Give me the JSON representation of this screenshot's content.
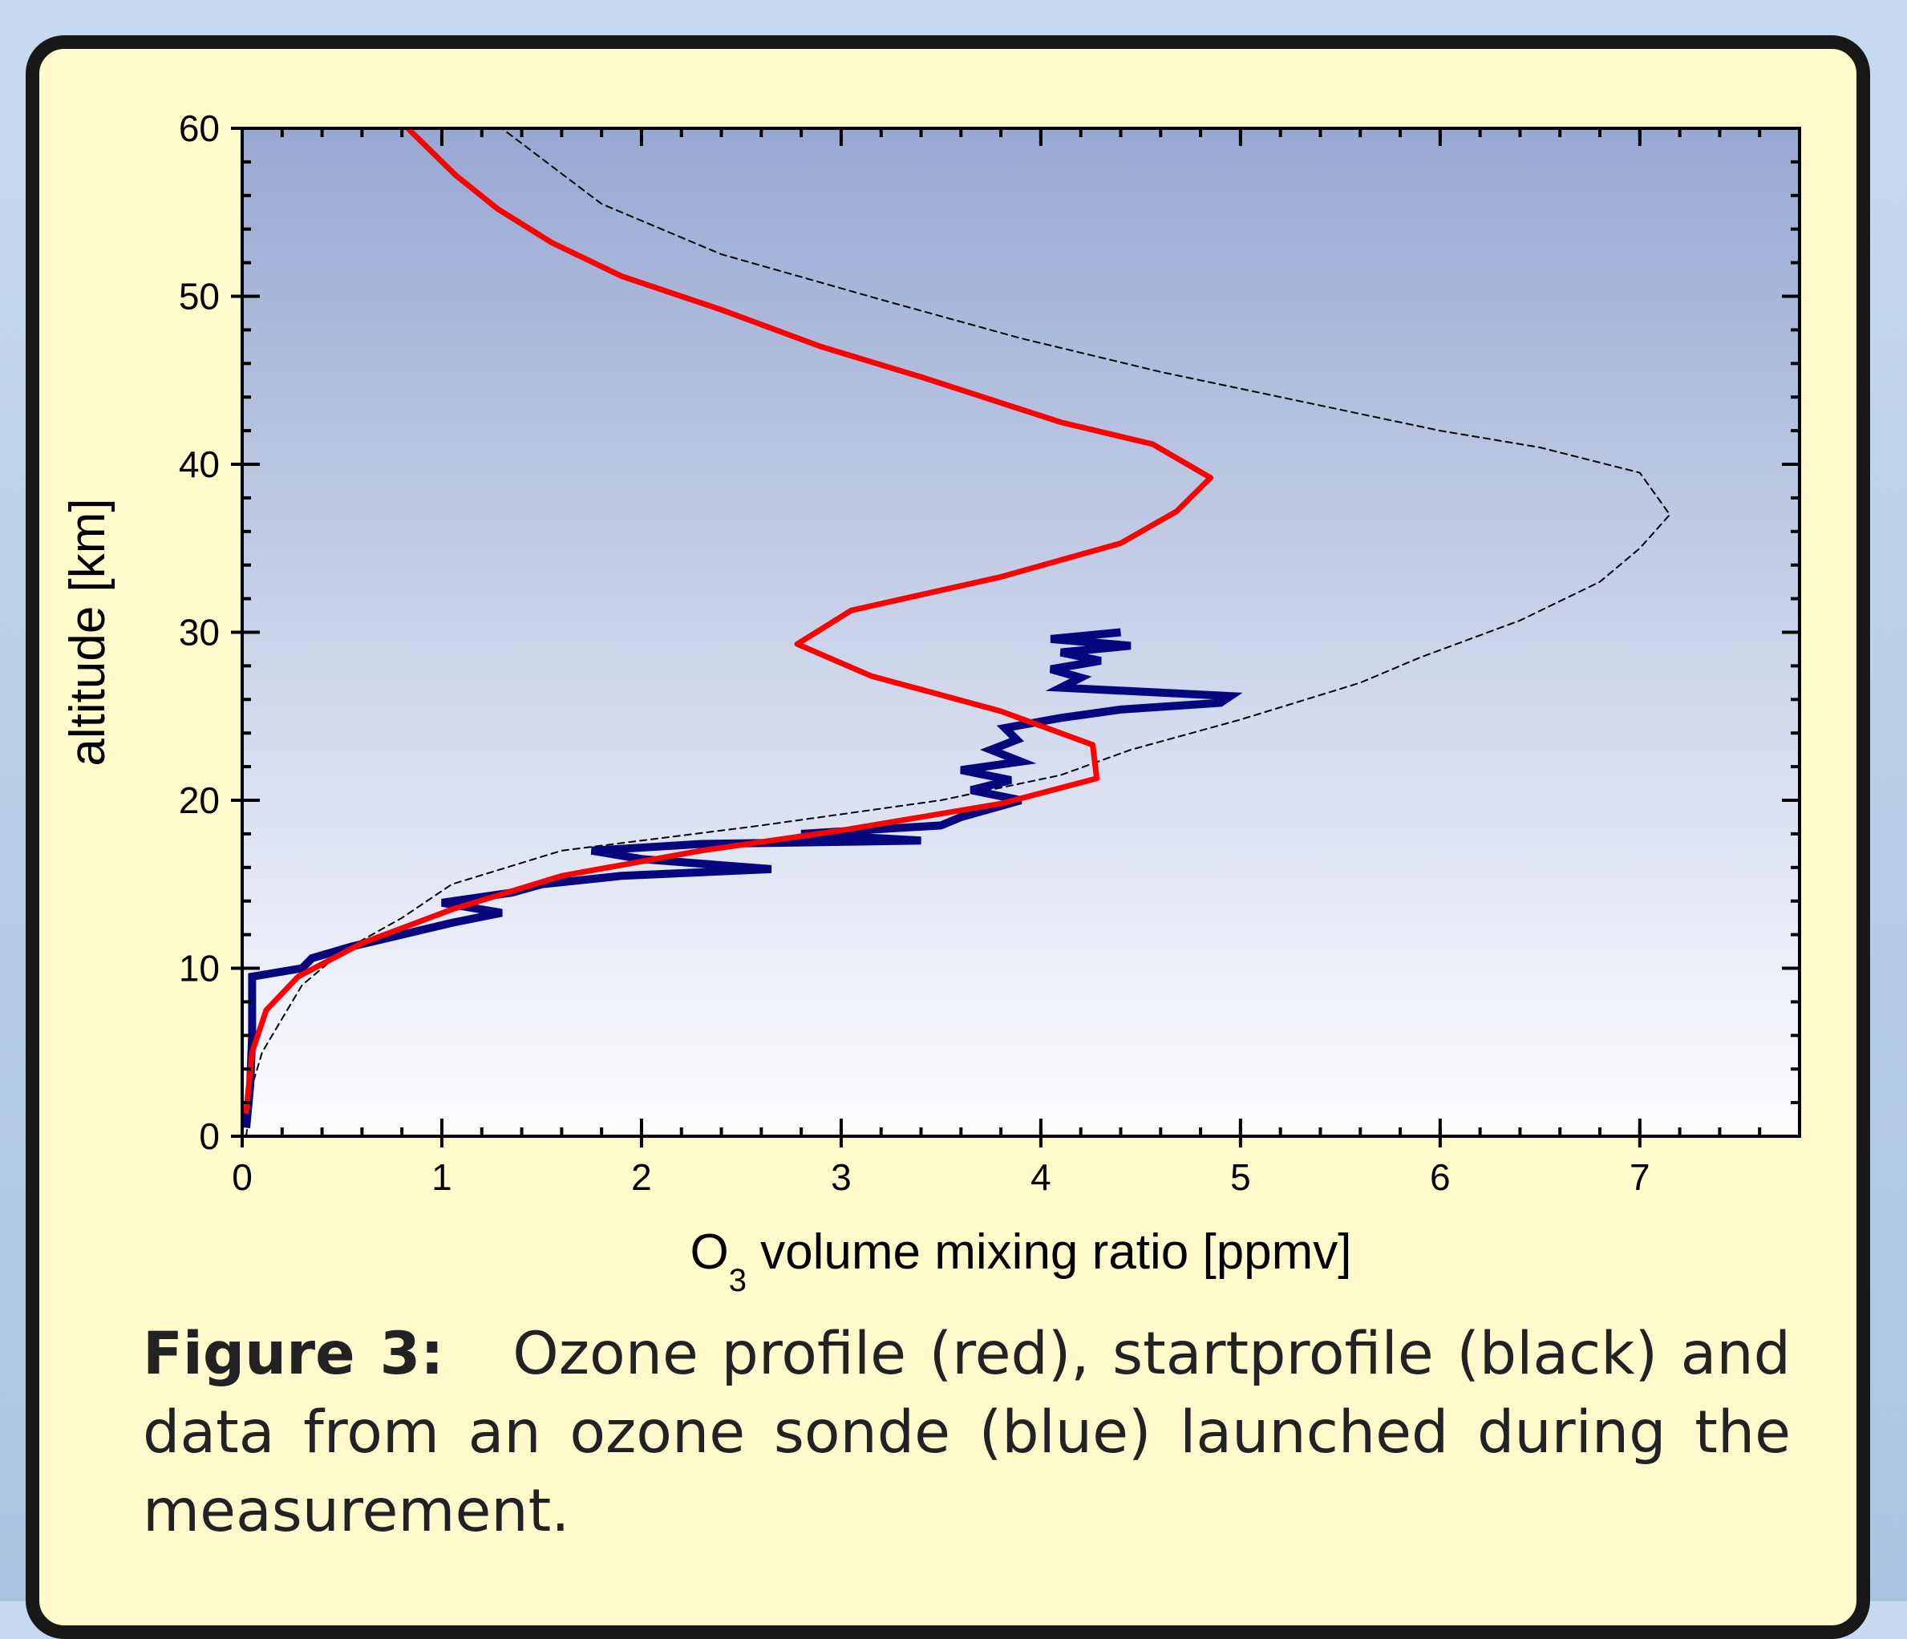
{
  "caption": {
    "label": "Figure 3:",
    "text": "Ozone profile (red), startprofile (black) and data from an ozone sonde (blue) launched during the measurement."
  },
  "chart_data": {
    "type": "line",
    "xlabel_main": "O",
    "xlabel_sub": "3",
    "xlabel_rest": " volume mixing ratio [ppmv]",
    "ylabel": "altitude [km]",
    "xlim": [
      0,
      7.8
    ],
    "ylim": [
      0,
      60
    ],
    "x_ticks": [
      "0",
      "1",
      "2",
      "3",
      "4",
      "5",
      "6",
      "7"
    ],
    "y_ticks": [
      "0",
      "10",
      "20",
      "30",
      "40",
      "50",
      "60"
    ],
    "grid": false,
    "background_gradient": [
      "#97a8d3",
      "#fdfdff"
    ],
    "series": [
      {
        "color": "#000000",
        "style": "dashed",
        "points": [
          [
            0.02,
            0
          ],
          [
            0.05,
            3
          ],
          [
            0.1,
            5
          ],
          [
            0.2,
            7
          ],
          [
            0.3,
            9
          ],
          [
            0.5,
            11
          ],
          [
            0.8,
            13
          ],
          [
            1.05,
            15
          ],
          [
            1.6,
            17
          ],
          [
            2.6,
            18.5
          ],
          [
            3.5,
            20
          ],
          [
            4.1,
            21.5
          ],
          [
            4.45,
            23
          ],
          [
            5.0,
            24.8
          ],
          [
            5.6,
            27
          ],
          [
            5.9,
            28.5
          ],
          [
            6.4,
            30.7
          ],
          [
            6.8,
            33
          ],
          [
            7.0,
            35
          ],
          [
            7.15,
            37
          ],
          [
            7.0,
            39.5
          ],
          [
            6.5,
            41
          ],
          [
            6.0,
            42
          ],
          [
            5.2,
            44
          ],
          [
            4.6,
            45.5
          ],
          [
            3.9,
            47.5
          ],
          [
            3.2,
            49.8
          ],
          [
            2.4,
            52.5
          ],
          [
            1.8,
            55.5
          ],
          [
            1.3,
            60
          ]
        ]
      },
      {
        "color": "#ff0000",
        "style": "solid",
        "points": [
          [
            0.02,
            1.5
          ],
          [
            0.05,
            5
          ],
          [
            0.12,
            7.5
          ],
          [
            0.28,
            9.5
          ],
          [
            0.6,
            11.5
          ],
          [
            1.05,
            13.5
          ],
          [
            1.6,
            15.5
          ],
          [
            2.3,
            17
          ],
          [
            3.0,
            18.2
          ],
          [
            3.8,
            19.8
          ],
          [
            4.28,
            21.3
          ],
          [
            4.26,
            23.3
          ],
          [
            3.8,
            25.3
          ],
          [
            3.15,
            27.4
          ],
          [
            2.78,
            29.3
          ],
          [
            3.05,
            31.3
          ],
          [
            3.8,
            33.3
          ],
          [
            4.4,
            35.3
          ],
          [
            4.68,
            37.2
          ],
          [
            4.85,
            39.2
          ],
          [
            4.56,
            41.2
          ],
          [
            4.1,
            42.5
          ],
          [
            3.4,
            45.2
          ],
          [
            2.9,
            47
          ],
          [
            2.4,
            49.2
          ],
          [
            1.9,
            51.2
          ],
          [
            1.55,
            53.2
          ],
          [
            1.28,
            55.2
          ],
          [
            1.07,
            57.2
          ],
          [
            0.83,
            60
          ]
        ]
      },
      {
        "color": "#06067e",
        "style": "solid",
        "points": [
          [
            0.02,
            0.5
          ],
          [
            0.04,
            3
          ],
          [
            0.05,
            6
          ],
          [
            0.05,
            9.5
          ],
          [
            0.3,
            10
          ],
          [
            0.35,
            10.6
          ],
          [
            0.55,
            11.3
          ],
          [
            0.8,
            12
          ],
          [
            1.05,
            12.7
          ],
          [
            1.3,
            13.3
          ],
          [
            1.0,
            13.9
          ],
          [
            1.35,
            14.5
          ],
          [
            1.5,
            15
          ],
          [
            1.9,
            15.5
          ],
          [
            2.65,
            15.9
          ],
          [
            2.0,
            16.5
          ],
          [
            1.75,
            17
          ],
          [
            2.3,
            17.4
          ],
          [
            3.4,
            17.6
          ],
          [
            2.8,
            18
          ],
          [
            3.5,
            18.5
          ],
          [
            3.6,
            19
          ],
          [
            3.75,
            19.5
          ],
          [
            3.9,
            20
          ],
          [
            3.65,
            20.6
          ],
          [
            3.85,
            21.2
          ],
          [
            3.6,
            21.8
          ],
          [
            3.9,
            22.3
          ],
          [
            3.75,
            23
          ],
          [
            3.88,
            23.6
          ],
          [
            3.82,
            24.3
          ],
          [
            4.1,
            24.9
          ],
          [
            4.4,
            25.4
          ],
          [
            4.9,
            25.8
          ],
          [
            4.95,
            26.2
          ],
          [
            4.1,
            26.7
          ],
          [
            4.2,
            27.3
          ],
          [
            4.05,
            27.8
          ],
          [
            4.3,
            28.3
          ],
          [
            4.1,
            28.8
          ],
          [
            4.45,
            29.2
          ],
          [
            4.05,
            29.6
          ],
          [
            4.4,
            30
          ]
        ]
      }
    ]
  }
}
